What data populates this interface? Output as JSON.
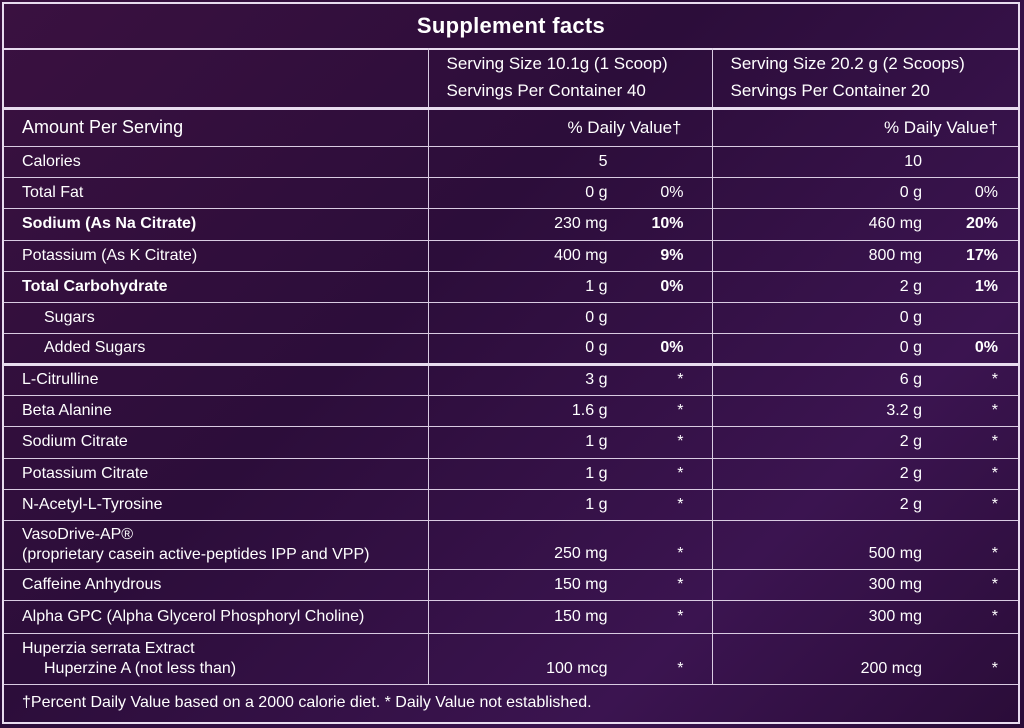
{
  "title": "Supplement facts",
  "columns": [
    {
      "serving_size": "Serving Size 10.1g (1 Scoop)",
      "servings_per_container": "Servings Per Container 40",
      "dv_header": "% Daily Value†"
    },
    {
      "serving_size": "Serving Size 20.2 g (2 Scoops)",
      "servings_per_container": "Servings Per Container 20",
      "dv_header": "% Daily Value†"
    }
  ],
  "amount_per_serving": "Amount Per Serving",
  "rows": [
    {
      "label": "Calories",
      "v1": "5",
      "d1": "",
      "v2": "10",
      "d2": ""
    },
    {
      "label": "Total Fat",
      "v1": "0 g",
      "d1": "0%",
      "v2": "0 g",
      "d2": "0%"
    },
    {
      "label": "Sodium (As Na Citrate)",
      "v1": "230 mg",
      "d1": "10%",
      "v2": "460 mg",
      "d2": "20%"
    },
    {
      "label": "Potassium (As K Citrate)",
      "v1": "400 mg",
      "d1": "9%",
      "v2": "800 mg",
      "d2": "17%"
    },
    {
      "label": "Total Carbohydrate",
      "v1": "1 g",
      "d1": "0%",
      "v2": "2 g",
      "d2": "1%"
    },
    {
      "label": "Sugars",
      "v1": "0 g",
      "d1": "",
      "v2": "0 g",
      "d2": ""
    },
    {
      "label": "Added Sugars",
      "v1": "0 g",
      "d1": "0%",
      "v2": "0 g",
      "d2": "0%"
    },
    {
      "label": "L-Citrulline",
      "v1": "3 g",
      "d1": "*",
      "v2": "6 g",
      "d2": "*"
    },
    {
      "label": "Beta Alanine",
      "v1": "1.6 g",
      "d1": "*",
      "v2": "3.2 g",
      "d2": "*"
    },
    {
      "label": "Sodium Citrate",
      "v1": "1 g",
      "d1": "*",
      "v2": "2 g",
      "d2": "*"
    },
    {
      "label": "Potassium Citrate",
      "v1": "1 g",
      "d1": "*",
      "v2": "2 g",
      "d2": "*"
    },
    {
      "label": "N-Acetyl-L-Tyrosine",
      "v1": "1 g",
      "d1": "*",
      "v2": "2 g",
      "d2": "*"
    },
    {
      "label": "VasoDrive-AP®",
      "label2": "(proprietary casein active-peptides IPP and VPP)",
      "v1": "250 mg",
      "d1": "*",
      "v2": "500 mg",
      "d2": "*"
    },
    {
      "label": "Caffeine Anhydrous",
      "v1": "150 mg",
      "d1": "*",
      "v2": "300 mg",
      "d2": "*"
    },
    {
      "label": "Alpha GPC (Alpha Glycerol Phosphoryl Choline)",
      "v1": "150 mg",
      "d1": "*",
      "v2": "300 mg",
      "d2": "*"
    },
    {
      "label": "Huperzia serrata Extract",
      "label2": "Huperzine A (not less than)",
      "v1": "100 mcg",
      "d1": "*",
      "v2": "200 mcg",
      "d2": "*"
    }
  ],
  "footnote": "†Percent Daily Value based on a 2000 calorie diet.  * Daily Value not established."
}
